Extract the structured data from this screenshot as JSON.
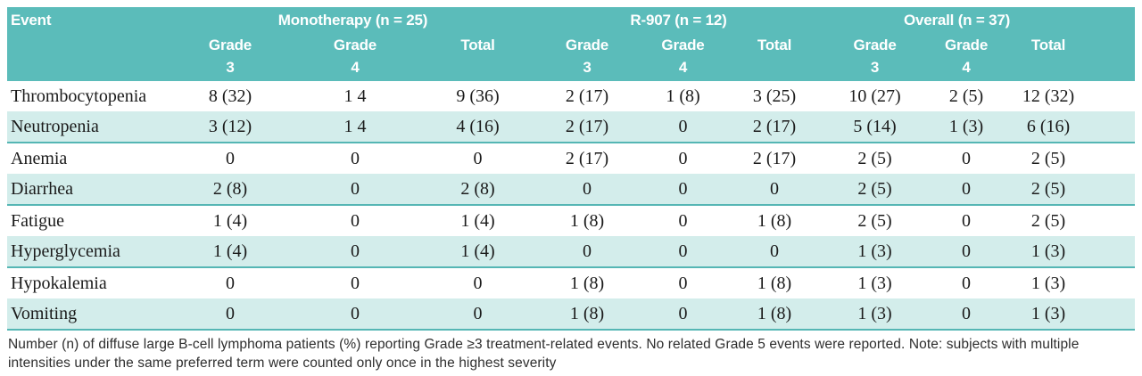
{
  "colors": {
    "header_bg": "#5bbcba",
    "alt_row_bg": "#d3edeb",
    "rule": "#55b6b4",
    "text": "#1b1b1b",
    "footnote_text": "#2e2e2e"
  },
  "header": {
    "event_label": "Event",
    "groups": [
      {
        "label": "Monotherapy (n = 25)"
      },
      {
        "label": "R-907 (n = 12)"
      },
      {
        "label": "Overall (n = 37)"
      }
    ],
    "sub_columns": [
      {
        "line1": "Grade",
        "line2": "3"
      },
      {
        "line1": "Grade",
        "line2": "4"
      },
      {
        "line1": "Total",
        "line2": ""
      }
    ]
  },
  "rows": [
    {
      "event": "Thrombocytopenia",
      "values": [
        "8 (32)",
        "1 4",
        "9 (36)",
        "2 (17)",
        "1 (8)",
        "3 (25)",
        "10 (27)",
        "2 (5)",
        "12 (32)"
      ]
    },
    {
      "event": "Neutropenia",
      "values": [
        "3 (12)",
        "1 4",
        "4 (16)",
        "2 (17)",
        "0",
        "2 (17)",
        "5 (14)",
        "1 (3)",
        "6 (16)"
      ]
    },
    {
      "event": "Anemia",
      "values": [
        "0",
        "0",
        "0",
        "2 (17)",
        "0",
        "2 (17)",
        "2 (5)",
        "0",
        "2 (5)"
      ]
    },
    {
      "event": "Diarrhea",
      "values": [
        "2 (8)",
        "0",
        "2 (8)",
        "0",
        "0",
        "0",
        "2 (5)",
        "0",
        "2 (5)"
      ]
    },
    {
      "event": "Fatigue",
      "values": [
        "1 (4)",
        "0",
        "1 (4)",
        "1 (8)",
        "0",
        "1 (8)",
        "2 (5)",
        "0",
        "2 (5)"
      ]
    },
    {
      "event": "Hyperglycemia",
      "values": [
        "1 (4)",
        "0",
        "1 (4)",
        "0",
        "0",
        "0",
        "1 (3)",
        "0",
        "1 (3)"
      ]
    },
    {
      "event": "Hypokalemia",
      "values": [
        "0",
        "0",
        "0",
        "1 (8)",
        "0",
        "1 (8)",
        "1 (3)",
        "0",
        "1 (3)"
      ]
    },
    {
      "event": "Vomiting",
      "values": [
        "0",
        "0",
        "0",
        "1 (8)",
        "0",
        "1 (8)",
        "1 (3)",
        "0",
        "1 (3)"
      ]
    }
  ],
  "footnote": {
    "line1": "Number (n) of diffuse large B-cell lymphoma patients (%) reporting Grade ≥3 treatment-related events. No related Grade 5 events were reported. Note: subjects with multiple",
    "line2": "intensities under the same preferred term were counted only once in the highest severity"
  }
}
